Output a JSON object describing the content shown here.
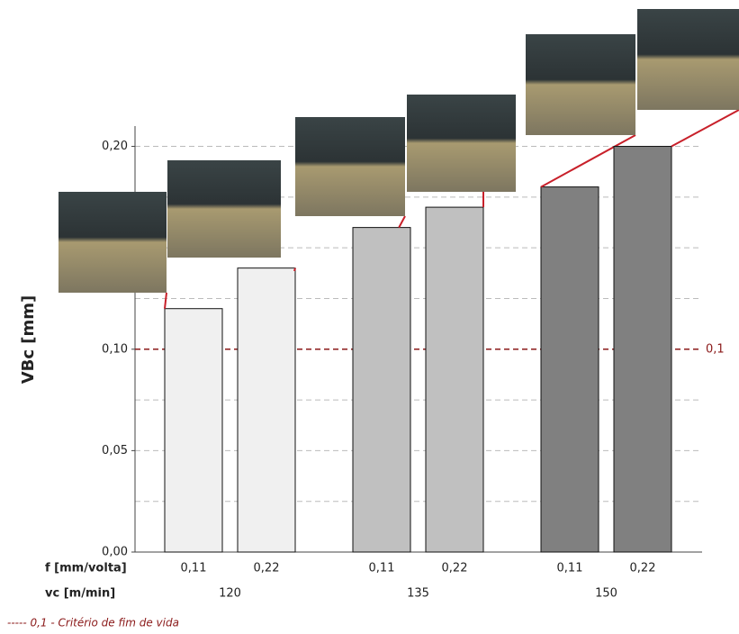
{
  "chart_data": {
    "type": "bar",
    "y_label": "VBc [mm]",
    "categories": [
      "0,11",
      "0,22",
      "0,11",
      "0,22",
      "0,11",
      "0,22"
    ],
    "category_row_label": "f [mm/volta]",
    "groups": [
      "120",
      "135",
      "150"
    ],
    "group_row_label": "vc [m/min]",
    "values": [
      0.12,
      0.14,
      0.16,
      0.17,
      0.18,
      0.2
    ],
    "colors": [
      "#f0f0f0",
      "#f0f0f0",
      "#c0c0c0",
      "#c0c0c0",
      "#808080",
      "#808080"
    ],
    "ylim": [
      0,
      0.21
    ],
    "yticks": [
      {
        "value": 0,
        "label": "0,00"
      },
      {
        "value": 0.05,
        "label": "0,05"
      },
      {
        "value": 0.1,
        "label": "0,10"
      },
      {
        "value": 0.2,
        "label": "0,20"
      }
    ],
    "grid_lines": [
      0.025,
      0.05,
      0.075,
      0.125,
      0.15,
      0.175,
      0.2
    ],
    "grid": true,
    "threshold": {
      "value": 0.1,
      "label": "0,1",
      "color": "#8b1a1a"
    },
    "threshold_note": "----- 0,1 - Critério de fim de vida"
  }
}
